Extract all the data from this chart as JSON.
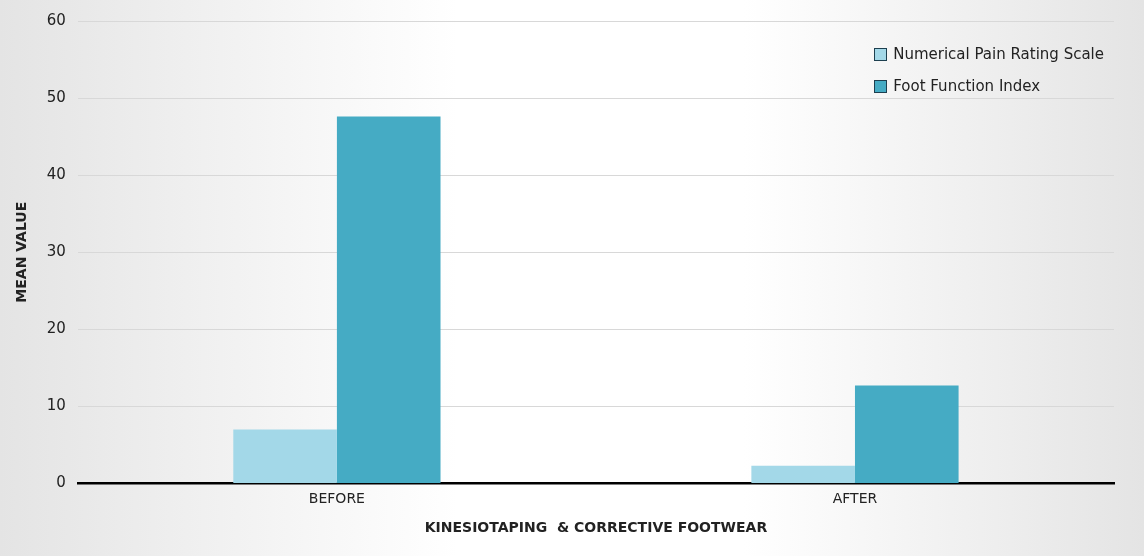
{
  "chart_data": {
    "type": "bar",
    "xlabel": "KINESIOTAPING  & CORRECTIVE FOOTWEAR",
    "ylabel": "MEAN VALUE",
    "categories": [
      "BEFORE",
      "AFTER"
    ],
    "series": [
      {
        "name": "Numerical Pain Rating Scale",
        "color": "#a3d8e8",
        "values": [
          7.0,
          2.3
        ]
      },
      {
        "name": "Foot Function Index",
        "color": "#45abc4",
        "values": [
          47.6,
          12.7
        ]
      }
    ],
    "ylim": [
      0,
      60
    ],
    "yticks": [
      0,
      10,
      20,
      30,
      40,
      50,
      60
    ],
    "grid": "y",
    "legend": "top right"
  }
}
